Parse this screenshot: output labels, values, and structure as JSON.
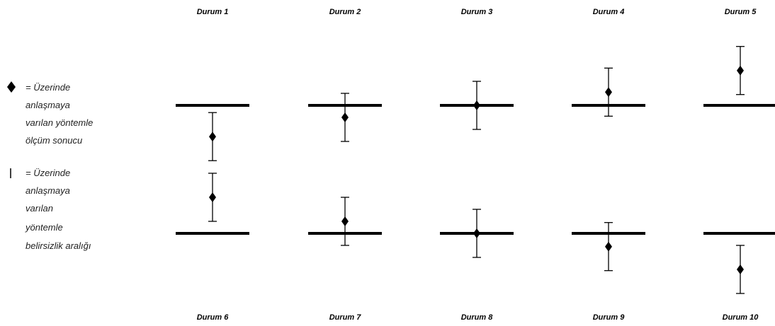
{
  "legend": {
    "marker_lines": [
      "= Üzerinde",
      "anlaşmaya",
      "varılan yöntemle",
      "ölçüm sonucu"
    ],
    "interval_lines": [
      "= Üzerinde",
      "anlaşmaya",
      "varılan",
      "yöntemle",
      "belirsizlik aralığı"
    ]
  },
  "cases": [
    {
      "label": "Durum 1",
      "row": "top",
      "point": -1.3,
      "half_interval": 1.0
    },
    {
      "label": "Durum 2",
      "row": "top",
      "point": -0.5,
      "half_interval": 1.0
    },
    {
      "label": "Durum 3",
      "row": "top",
      "point": 0.0,
      "half_interval": 1.0
    },
    {
      "label": "Durum 4",
      "row": "top",
      "point": 0.55,
      "half_interval": 1.0
    },
    {
      "label": "Durum 5",
      "row": "top",
      "point": 1.45,
      "half_interval": 1.0
    },
    {
      "label": "Durum 6",
      "row": "bottom",
      "point": 1.5,
      "half_interval": 1.0
    },
    {
      "label": "Durum 7",
      "row": "bottom",
      "point": 0.5,
      "half_interval": 1.0
    },
    {
      "label": "Durum 8",
      "row": "bottom",
      "point": 0.0,
      "half_interval": 1.0
    },
    {
      "label": "Durum 9",
      "row": "bottom",
      "point": -0.55,
      "half_interval": 1.0
    },
    {
      "label": "Durum 10",
      "row": "bottom",
      "point": -1.5,
      "half_interval": 1.0
    }
  ],
  "colors": {
    "ink": "#000000"
  }
}
